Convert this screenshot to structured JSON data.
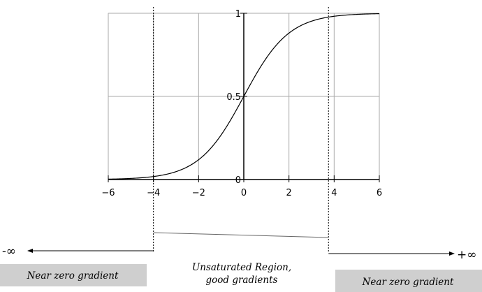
{
  "chart_data": {
    "type": "line",
    "title": "",
    "xlabel": "",
    "ylabel": "",
    "xlim": [
      -6,
      6
    ],
    "ylim": [
      0,
      1
    ],
    "x_ticks": [
      "−6",
      "−4",
      "−2",
      "0",
      "2",
      "4",
      "6"
    ],
    "y_ticks": [
      "0",
      "0.5",
      "1"
    ],
    "grid": true,
    "series": [
      {
        "function": "sigmoid",
        "x": [
          -6,
          -5,
          -4,
          -3,
          -2,
          -1,
          0,
          1,
          2,
          3,
          4,
          5,
          6
        ],
        "y": [
          0.0025,
          0.0067,
          0.018,
          0.047,
          0.119,
          0.269,
          0.5,
          0.731,
          0.881,
          0.953,
          0.982,
          0.993,
          0.9975
        ]
      }
    ],
    "saturation_bounds": [
      -4,
      3.75
    ],
    "annotations": {
      "neg_infinity": "-∞",
      "pos_infinity": "+∞",
      "left_region": "Near zero gradient",
      "center_region_line1": "Unsaturated Region,",
      "center_region_line2": "good gradients",
      "right_region": "Near zero gradient"
    },
    "colors": {
      "curve": "#000000",
      "grid": "#aaaaaa",
      "region_box": "#cfcfcf"
    }
  }
}
